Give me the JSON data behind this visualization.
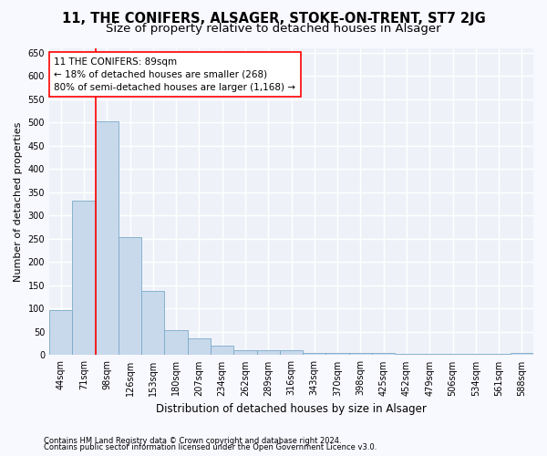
{
  "title1": "11, THE CONIFERS, ALSAGER, STOKE-ON-TRENT, ST7 2JG",
  "title2": "Size of property relative to detached houses in Alsager",
  "xlabel": "Distribution of detached houses by size in Alsager",
  "ylabel": "Number of detached properties",
  "categories": [
    "44sqm",
    "71sqm",
    "98sqm",
    "126sqm",
    "153sqm",
    "180sqm",
    "207sqm",
    "234sqm",
    "262sqm",
    "289sqm",
    "316sqm",
    "343sqm",
    "370sqm",
    "398sqm",
    "425sqm",
    "452sqm",
    "479sqm",
    "506sqm",
    "534sqm",
    "561sqm",
    "588sqm"
  ],
  "values": [
    97,
    332,
    503,
    253,
    137,
    53,
    37,
    21,
    10,
    10,
    10,
    5,
    5,
    5,
    5,
    2,
    2,
    2,
    2,
    2,
    5
  ],
  "bar_color": "#c8d9ec",
  "bar_edge_color": "#7aaac8",
  "vline_x": 1.5,
  "annotation_text": "11 THE CONIFERS: 89sqm\n← 18% of detached houses are smaller (268)\n80% of semi-detached houses are larger (1,168) →",
  "footnote1": "Contains HM Land Registry data © Crown copyright and database right 2024.",
  "footnote2": "Contains public sector information licensed under the Open Government Licence v3.0.",
  "ylim": [
    0,
    660
  ],
  "yticks": [
    0,
    50,
    100,
    150,
    200,
    250,
    300,
    350,
    400,
    450,
    500,
    550,
    600,
    650
  ],
  "background_color": "#eef2f8",
  "grid_color": "#ffffff",
  "fig_background": "#f8f8ff",
  "title1_fontsize": 10.5,
  "title2_fontsize": 9.5,
  "ylabel_fontsize": 8,
  "xlabel_fontsize": 8.5,
  "tick_fontsize": 7,
  "annot_fontsize": 7.5,
  "footnote_fontsize": 6
}
